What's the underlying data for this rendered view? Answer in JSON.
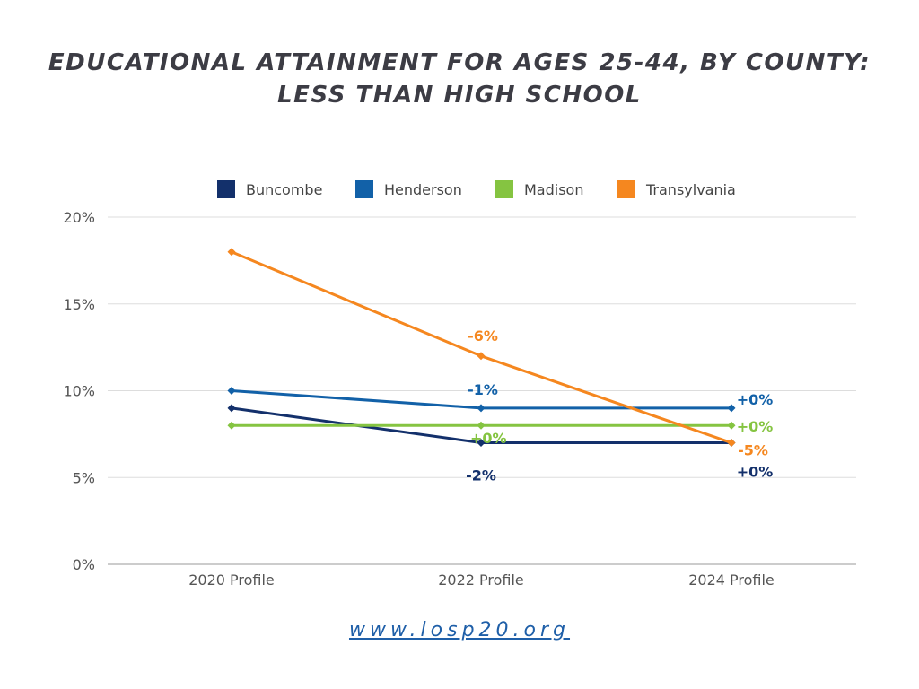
{
  "title": {
    "line1": "EDUCATIONAL ATTAINMENT FOR AGES 25-44, BY COUNTY:",
    "line2": "LESS THAN HIGH SCHOOL"
  },
  "footer": {
    "url": "www.losp20.org"
  },
  "chart_data": {
    "type": "line",
    "title": "EDUCATIONAL ATTAINMENT FOR AGES 25-44, BY COUNTY: LESS THAN HIGH SCHOOL",
    "xlabel": "",
    "ylabel": "",
    "categories": [
      "2020 Profile",
      "2022 Profile",
      "2024 Profile"
    ],
    "ylim": [
      0,
      20
    ],
    "yticks": [
      0,
      5,
      10,
      15,
      20
    ],
    "ytick_labels": [
      "0%",
      "5%",
      "10%",
      "15%",
      "20%"
    ],
    "grid": true,
    "legend_position": "top",
    "series": [
      {
        "name": "Buncombe",
        "color": "#13306b",
        "values": [
          9,
          7,
          7
        ],
        "labels": [
          "",
          "-2%",
          "+0%"
        ]
      },
      {
        "name": "Henderson",
        "color": "#1261a8",
        "values": [
          10,
          9,
          9
        ],
        "labels": [
          "",
          "-1%",
          "+0%"
        ]
      },
      {
        "name": "Madison",
        "color": "#85c441",
        "values": [
          8,
          8,
          8
        ],
        "labels": [
          "",
          "+0%",
          "+0%"
        ]
      },
      {
        "name": "Transylvania",
        "color": "#f5871f",
        "values": [
          18,
          12,
          7
        ],
        "labels": [
          "",
          "-6%",
          "-5%"
        ]
      }
    ]
  }
}
